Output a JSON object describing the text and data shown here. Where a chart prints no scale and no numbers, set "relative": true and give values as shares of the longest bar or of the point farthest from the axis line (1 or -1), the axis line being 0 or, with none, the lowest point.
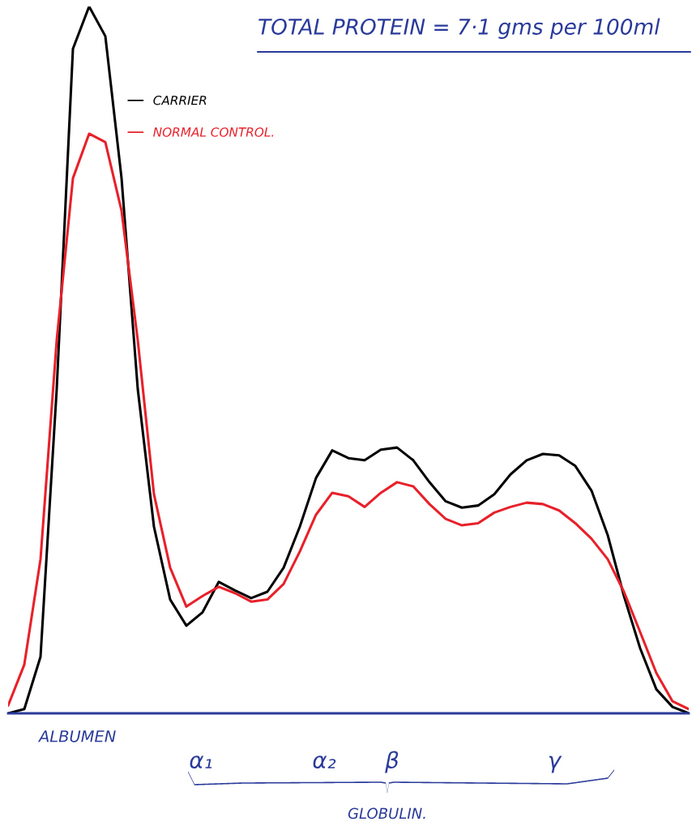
{
  "chart_data": {
    "type": "line",
    "title": "TOTAL PROTEIN = 7·1 gms per 100ml",
    "relative": true,
    "categories": [
      null,
      null,
      null,
      null,
      null,
      null,
      null,
      null,
      null,
      null,
      null,
      null,
      null,
      null,
      null,
      null,
      null,
      null,
      null,
      null,
      null,
      null,
      null,
      null,
      null,
      null,
      null,
      null,
      null,
      null,
      null,
      null,
      null,
      null,
      null,
      null,
      null,
      null,
      null,
      null,
      null,
      null,
      null
    ],
    "series": [
      {
        "name": "CARRIER",
        "color": "#000000",
        "values": [
          0,
          0.006,
          0.08,
          0.459,
          0.94,
          1.0,
          0.958,
          0.757,
          0.459,
          0.264,
          0.161,
          0.124,
          0.143,
          0.186,
          0.174,
          0.163,
          0.172,
          0.206,
          0.264,
          0.333,
          0.372,
          0.361,
          0.358,
          0.373,
          0.376,
          0.358,
          0.327,
          0.3,
          0.291,
          0.294,
          0.31,
          0.338,
          0.358,
          0.367,
          0.365,
          0.35,
          0.315,
          0.252,
          0.166,
          0.092,
          0.034,
          0.009,
          0
        ]
      },
      {
        "name": "NORMAL CONTROL.",
        "color": "#e8202a",
        "values": [
          0.011,
          0.069,
          0.218,
          0.528,
          0.757,
          0.82,
          0.808,
          0.711,
          0.528,
          0.31,
          0.206,
          0.151,
          0.166,
          0.179,
          0.17,
          0.158,
          0.161,
          0.183,
          0.229,
          0.281,
          0.312,
          0.307,
          0.292,
          0.312,
          0.327,
          0.321,
          0.296,
          0.275,
          0.266,
          0.269,
          0.284,
          0.292,
          0.298,
          0.296,
          0.287,
          0.269,
          0.247,
          0.218,
          0.172,
          0.115,
          0.057,
          0.017,
          0.006
        ]
      }
    ],
    "annotations": [
      "ALBUMEN",
      "α₁",
      "α₂",
      "β",
      "γ",
      "GLOBULIN."
    ],
    "legend": "top left",
    "marker": "none",
    "line_style": "solid"
  }
}
